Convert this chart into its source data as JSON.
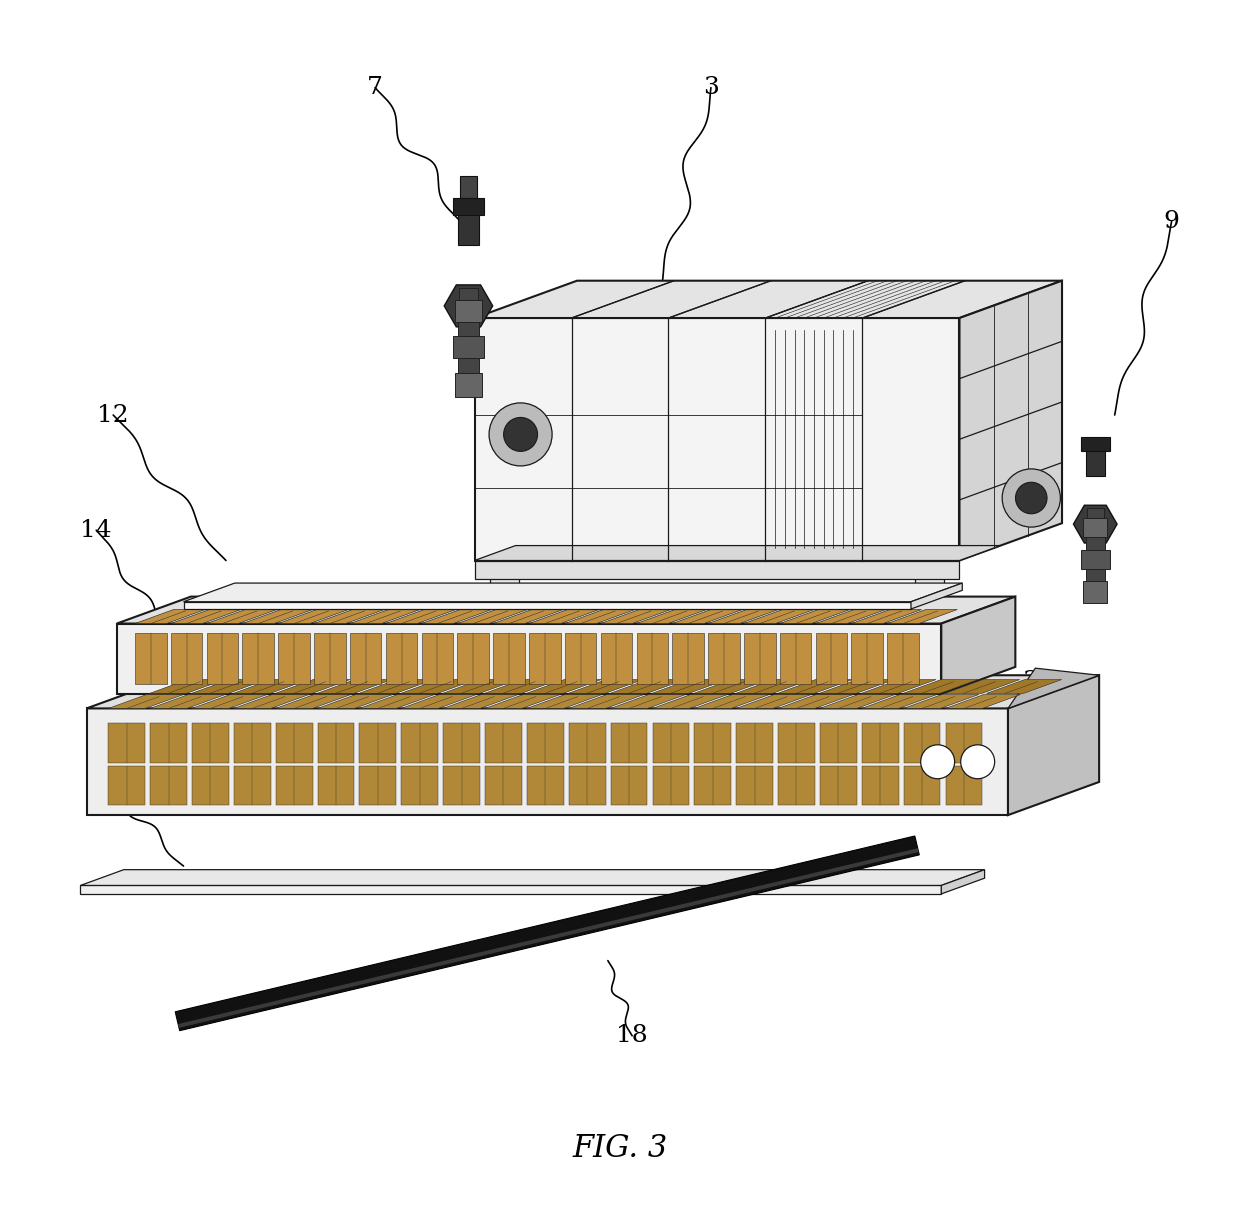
{
  "title": "FIG. 3",
  "background_color": "#ffffff",
  "title_fontsize": 22,
  "label_fontsize": 18
}
